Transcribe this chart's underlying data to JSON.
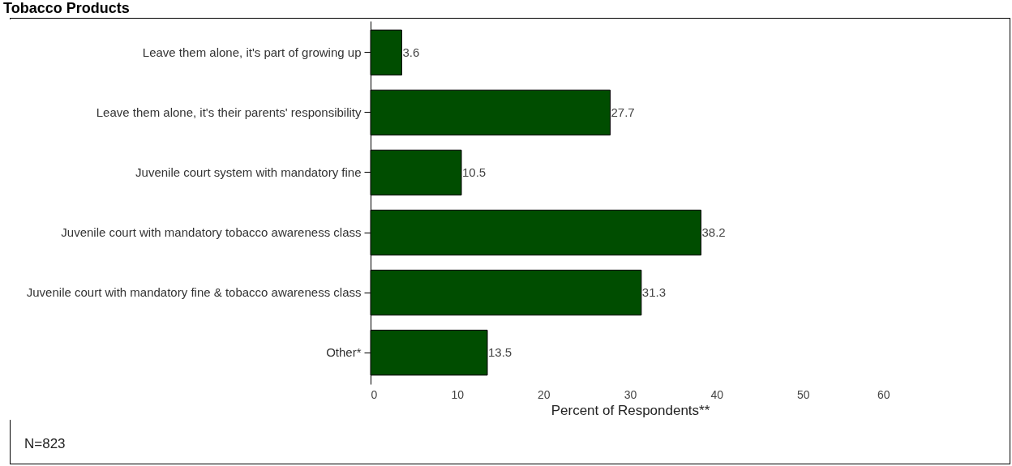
{
  "chart_data": {
    "type": "bar",
    "orientation": "horizontal",
    "title": "Tobacco Products",
    "categories": [
      "Leave them alone, it's part of growing up",
      "Leave them alone, it's their parents' responsibility",
      "Juvenile court system with mandatory fine",
      "Juvenile court with mandatory tobacco awareness class",
      "Juvenile court with mandatory fine & tobacco awareness class",
      "Other*"
    ],
    "values": [
      3.6,
      27.7,
      10.5,
      38.2,
      31.3,
      13.5
    ],
    "color": "#004d00",
    "xlim": [
      0,
      60
    ],
    "xticks": [
      0,
      10,
      20,
      30,
      40,
      50,
      60
    ],
    "xlabel": "Percent of Respondents**",
    "data_labels": true,
    "grid": false,
    "annotations": [
      "N=823"
    ]
  }
}
